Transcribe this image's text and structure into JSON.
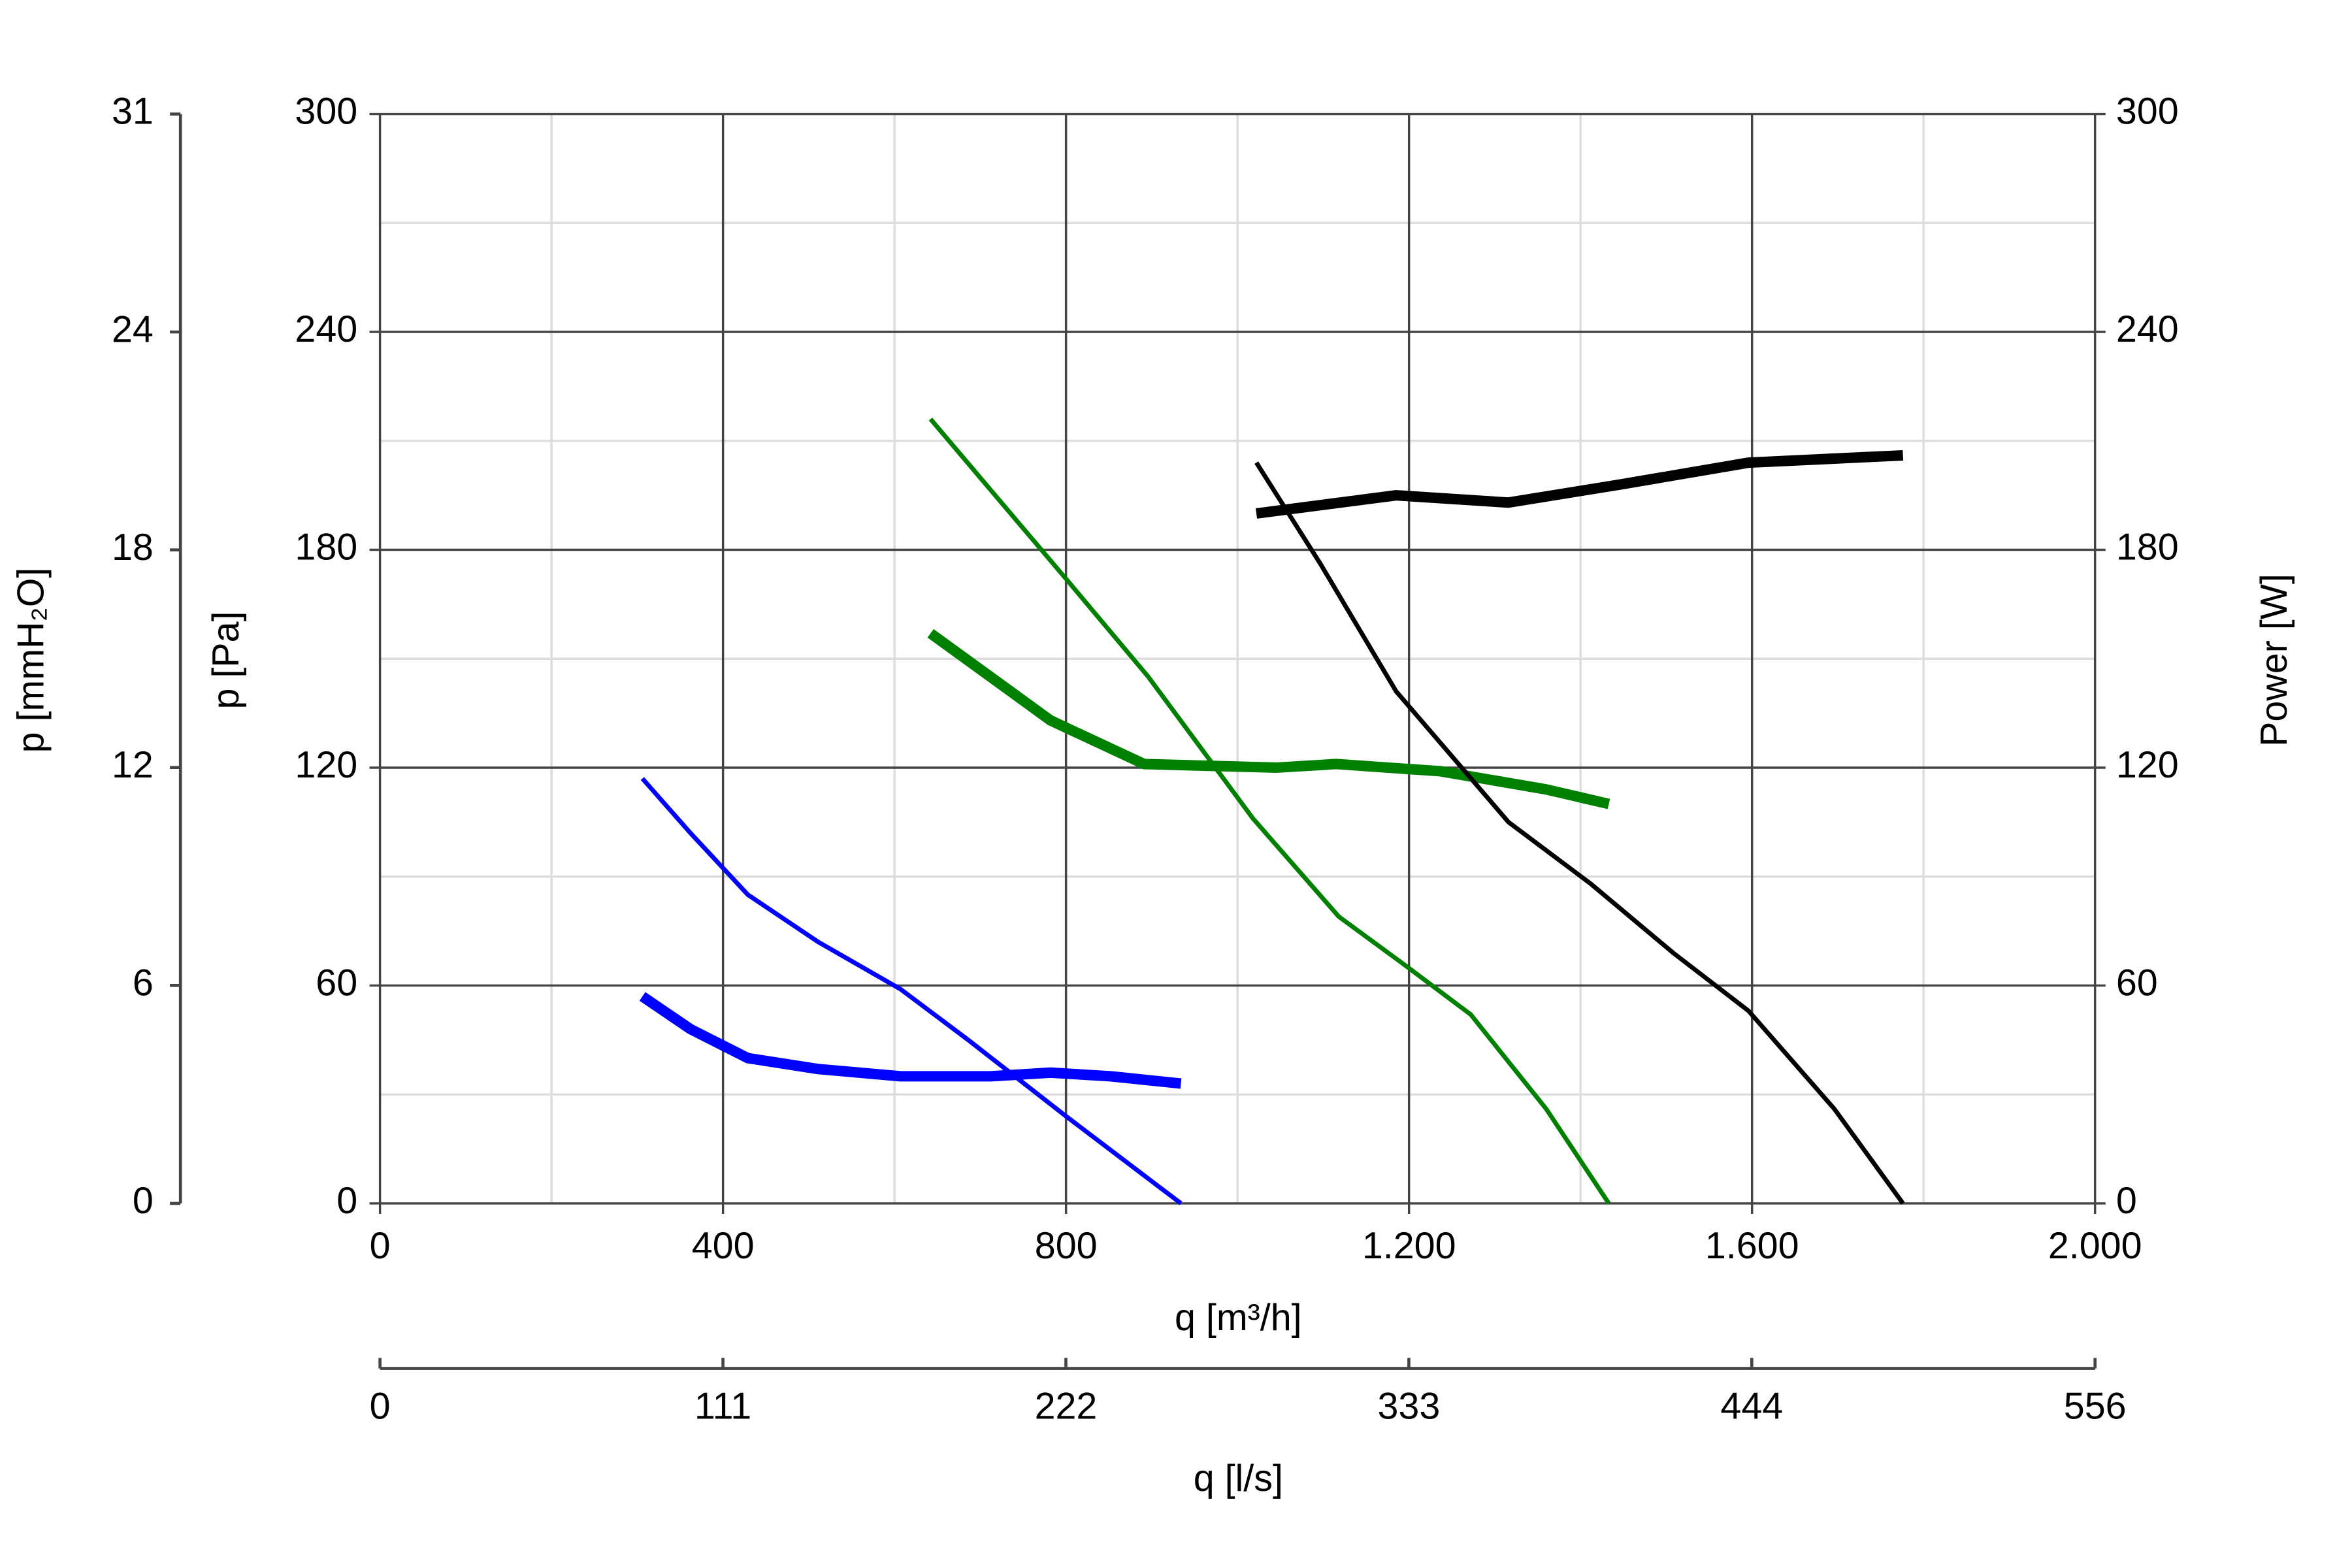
{
  "chart_data": {
    "type": "line",
    "xlabel": "q [m³/h]",
    "ylabel": "p [Pa]",
    "y2label": "Power [W]",
    "y3label": "p [mmH₂O]",
    "x2label": "q [l/s]",
    "xlim": [
      0,
      2000
    ],
    "xticks": [
      0,
      400,
      800,
      {
        "value": 1200,
        "label": "1.200"
      },
      {
        "value": 1600,
        "label": "1.600"
      },
      {
        "value": 2000,
        "label": "2.000"
      }
    ],
    "ylim": [
      0,
      300
    ],
    "yticks": [
      0,
      60,
      120,
      180,
      240,
      300
    ],
    "y2lim": [
      0,
      300
    ],
    "y2ticks": [
      0,
      60,
      120,
      180,
      240,
      300
    ],
    "y3lim": [
      0,
      30.59
    ],
    "y3ticks": [
      0,
      {
        "value": 6.12,
        "label": "6"
      },
      {
        "value": 12.24,
        "label": "12"
      },
      {
        "value": 18.35,
        "label": "18"
      },
      {
        "value": 24.47,
        "label": "24"
      },
      {
        "value": 30.59,
        "label": "31"
      }
    ],
    "x2lim": [
      0,
      555.6
    ],
    "x2ticks": [
      0,
      {
        "value": 111.1,
        "label": "111"
      },
      {
        "value": 222.2,
        "label": "222"
      },
      {
        "value": 333.3,
        "label": "333"
      },
      {
        "value": 444.4,
        "label": "444"
      },
      {
        "value": 555.6,
        "label": "556"
      }
    ],
    "grid": true,
    "series": [
      {
        "color": "#0000ff",
        "width": "thin",
        "x": [
          306,
          362,
          429,
          511,
          607,
          686,
          800,
          934
        ],
        "values": [
          117,
          102,
          85,
          72,
          59,
          45,
          24,
          0
        ]
      },
      {
        "color": "#0000ff",
        "width": "thick",
        "axis": "y2",
        "x": [
          306,
          362,
          429,
          511,
          607,
          712,
          782,
          852,
          934
        ],
        "values": [
          57,
          48,
          40,
          37,
          35,
          35,
          36,
          35,
          33
        ]
      },
      {
        "color": "#008000",
        "width": "thin",
        "x": [
          642,
          800,
          896,
          1018,
          1118,
          1193,
          1272,
          1360,
          1433
        ],
        "values": [
          216,
          172,
          145,
          106,
          79,
          66,
          52,
          26,
          0
        ]
      },
      {
        "color": "#008000",
        "width": "thick",
        "axis": "y2",
        "x": [
          642,
          782,
          891,
          1045,
          1115,
          1237,
          1360,
          1433
        ],
        "values": [
          157,
          133,
          121,
          120,
          121,
          119,
          114,
          110
        ]
      },
      {
        "color": "#000000",
        "width": "thin",
        "x": [
          1022,
          1097,
          1185,
          1316,
          1412,
          1508,
          1596,
          1696,
          1776
        ],
        "values": [
          204,
          176,
          141,
          105,
          88,
          69,
          53,
          26,
          0
        ]
      },
      {
        "color": "#000000",
        "width": "thick",
        "axis": "y2",
        "x": [
          1022,
          1185,
          1316,
          1447,
          1596,
          1776
        ],
        "values": [
          190,
          195,
          193,
          198,
          204,
          206
        ]
      }
    ]
  }
}
